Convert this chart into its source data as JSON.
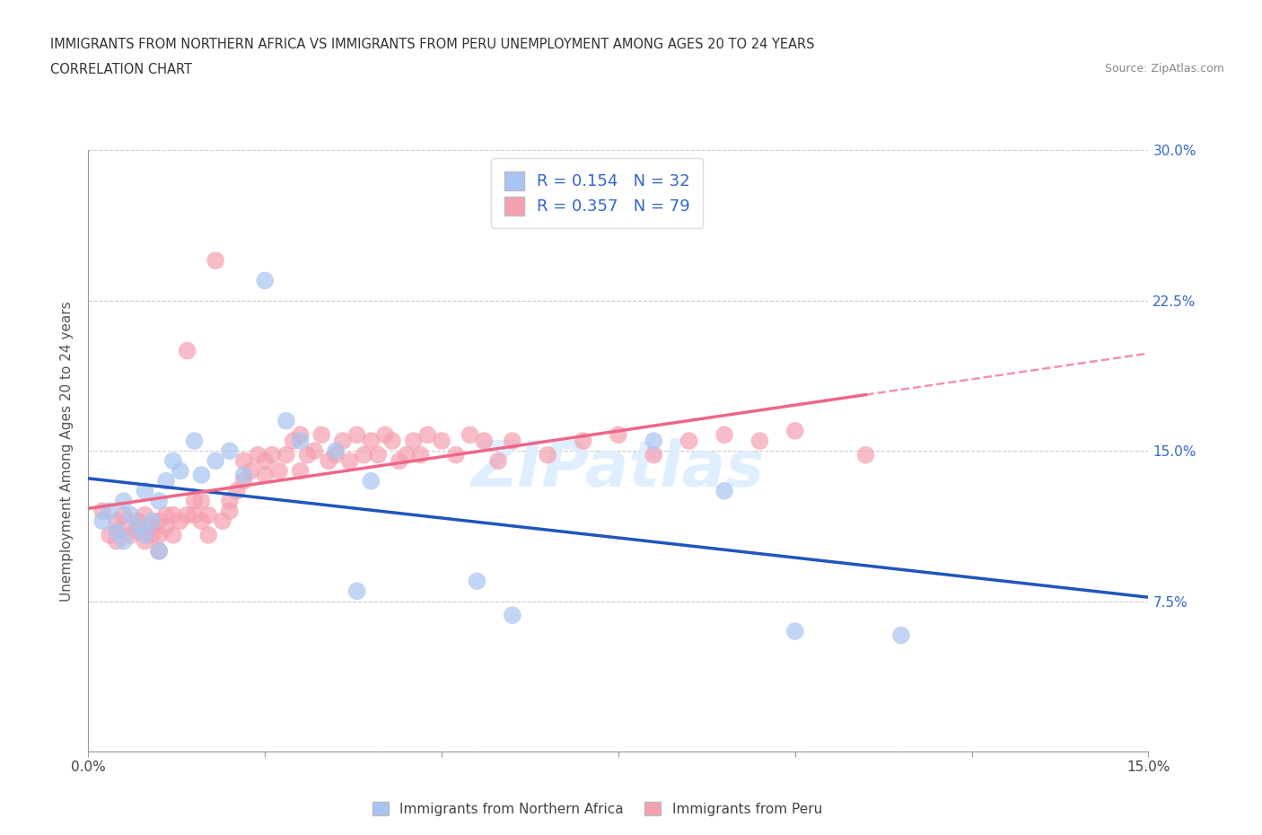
{
  "title_line1": "IMMIGRANTS FROM NORTHERN AFRICA VS IMMIGRANTS FROM PERU UNEMPLOYMENT AMONG AGES 20 TO 24 YEARS",
  "title_line2": "CORRELATION CHART",
  "source": "Source: ZipAtlas.com",
  "ylabel": "Unemployment Among Ages 20 to 24 years",
  "xlim": [
    0.0,
    0.15
  ],
  "ylim": [
    0.0,
    0.3
  ],
  "yticks": [
    0.0,
    0.075,
    0.15,
    0.225,
    0.3
  ],
  "yticklabels_right": [
    "",
    "7.5%",
    "15.0%",
    "22.5%",
    "30.0%"
  ],
  "R_blue": 0.154,
  "N_blue": 32,
  "R_pink": 0.357,
  "N_pink": 79,
  "color_blue": "#a8c4f0",
  "color_pink": "#f5a0b0",
  "color_blue_line": "#2255bb",
  "color_pink_line": "#ee6688",
  "legend_label_blue": "Immigrants from Northern Africa",
  "legend_label_pink": "Immigrants from Peru",
  "blue_x": [
    0.002,
    0.003,
    0.004,
    0.005,
    0.005,
    0.006,
    0.007,
    0.008,
    0.008,
    0.009,
    0.01,
    0.01,
    0.011,
    0.012,
    0.013,
    0.015,
    0.016,
    0.018,
    0.02,
    0.022,
    0.025,
    0.028,
    0.03,
    0.035,
    0.038,
    0.04,
    0.055,
    0.06,
    0.08,
    0.09,
    0.1,
    0.115
  ],
  "blue_y": [
    0.115,
    0.12,
    0.11,
    0.125,
    0.105,
    0.118,
    0.112,
    0.13,
    0.108,
    0.115,
    0.125,
    0.1,
    0.135,
    0.145,
    0.14,
    0.155,
    0.138,
    0.145,
    0.15,
    0.138,
    0.235,
    0.165,
    0.155,
    0.15,
    0.08,
    0.135,
    0.085,
    0.068,
    0.155,
    0.13,
    0.06,
    0.058
  ],
  "pink_x": [
    0.002,
    0.003,
    0.004,
    0.004,
    0.005,
    0.005,
    0.006,
    0.007,
    0.007,
    0.008,
    0.008,
    0.009,
    0.009,
    0.01,
    0.01,
    0.01,
    0.011,
    0.011,
    0.012,
    0.012,
    0.013,
    0.014,
    0.014,
    0.015,
    0.015,
    0.016,
    0.016,
    0.017,
    0.017,
    0.018,
    0.019,
    0.02,
    0.02,
    0.021,
    0.022,
    0.022,
    0.023,
    0.024,
    0.025,
    0.025,
    0.026,
    0.027,
    0.028,
    0.029,
    0.03,
    0.03,
    0.031,
    0.032,
    0.033,
    0.034,
    0.035,
    0.036,
    0.037,
    0.038,
    0.039,
    0.04,
    0.041,
    0.042,
    0.043,
    0.044,
    0.045,
    0.046,
    0.047,
    0.048,
    0.05,
    0.052,
    0.054,
    0.056,
    0.058,
    0.06,
    0.065,
    0.07,
    0.075,
    0.08,
    0.085,
    0.09,
    0.095,
    0.1,
    0.11
  ],
  "pink_y": [
    0.12,
    0.108,
    0.115,
    0.105,
    0.112,
    0.118,
    0.108,
    0.115,
    0.11,
    0.118,
    0.105,
    0.112,
    0.108,
    0.115,
    0.108,
    0.1,
    0.118,
    0.112,
    0.118,
    0.108,
    0.115,
    0.2,
    0.118,
    0.118,
    0.125,
    0.115,
    0.125,
    0.108,
    0.118,
    0.245,
    0.115,
    0.12,
    0.125,
    0.13,
    0.135,
    0.145,
    0.14,
    0.148,
    0.138,
    0.145,
    0.148,
    0.14,
    0.148,
    0.155,
    0.14,
    0.158,
    0.148,
    0.15,
    0.158,
    0.145,
    0.148,
    0.155,
    0.145,
    0.158,
    0.148,
    0.155,
    0.148,
    0.158,
    0.155,
    0.145,
    0.148,
    0.155,
    0.148,
    0.158,
    0.155,
    0.148,
    0.158,
    0.155,
    0.145,
    0.155,
    0.148,
    0.155,
    0.158,
    0.148,
    0.155,
    0.158,
    0.155,
    0.16,
    0.148
  ]
}
